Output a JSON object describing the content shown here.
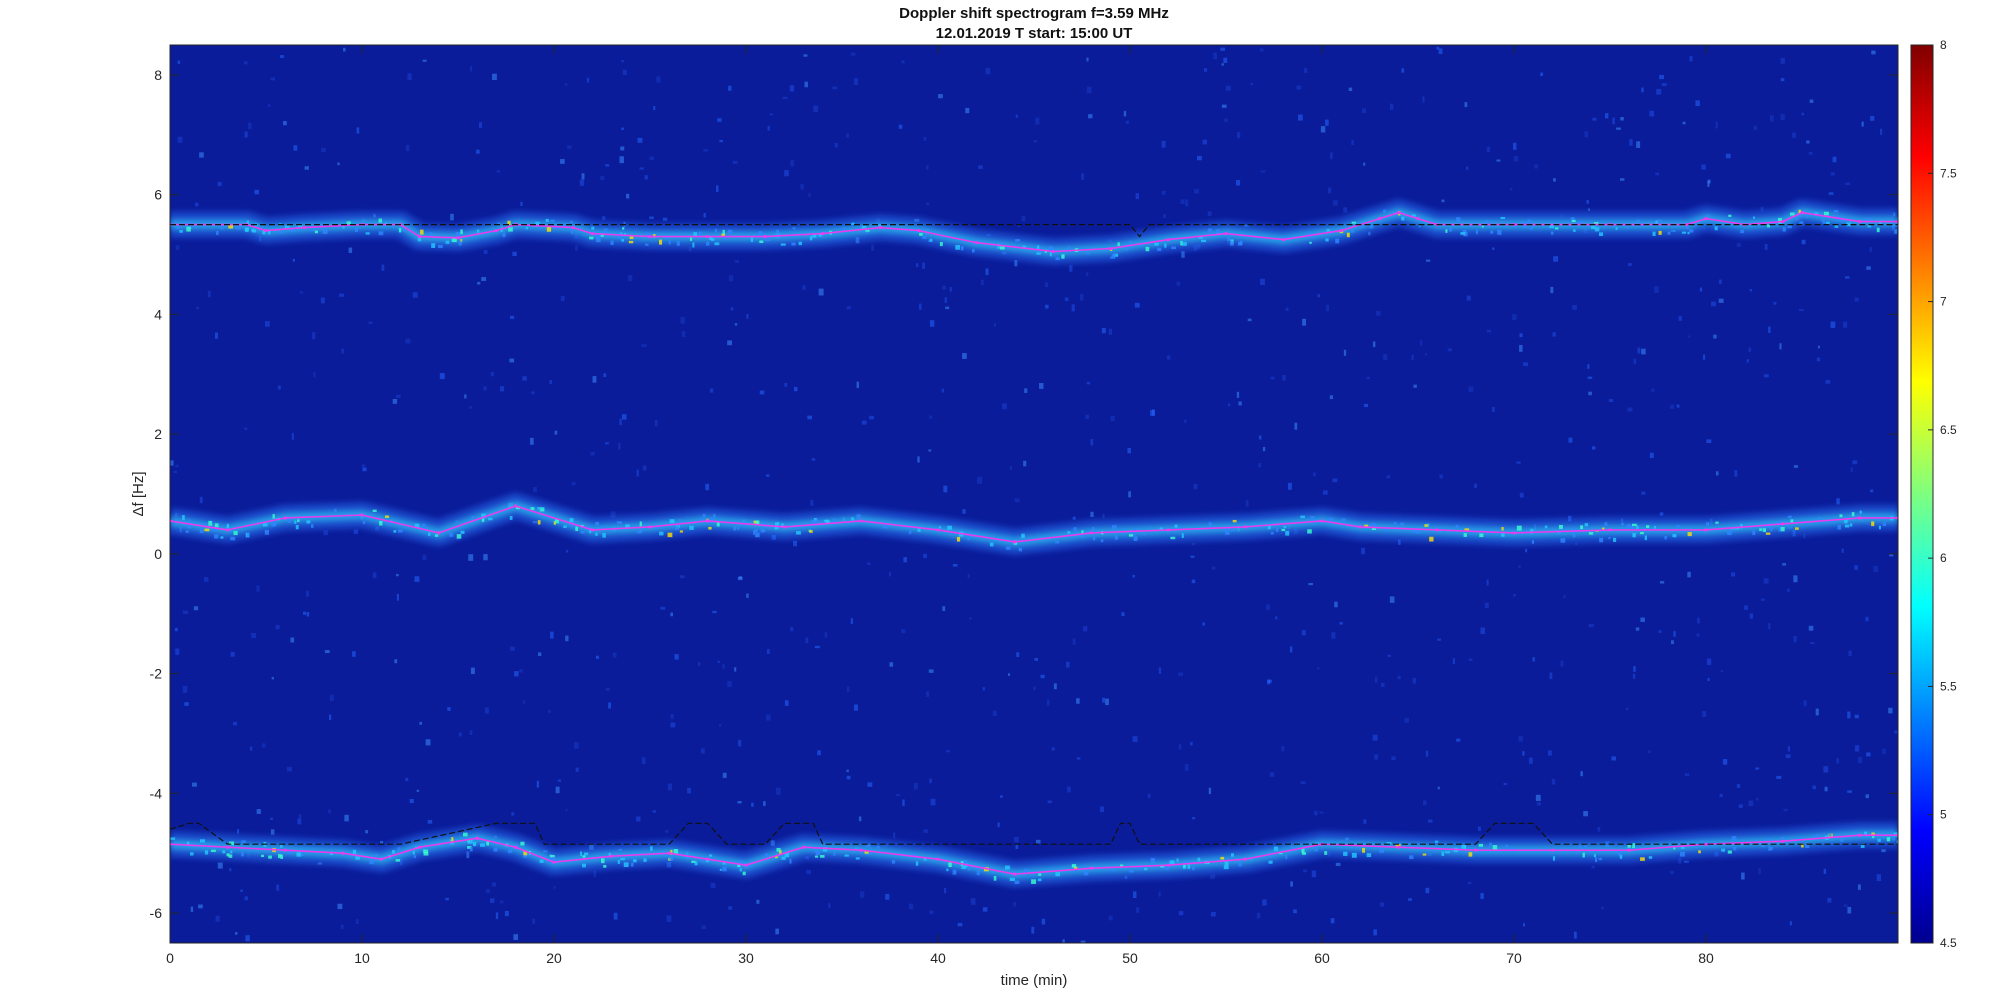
{
  "chart_data": {
    "type": "heatmap",
    "title": "Doppler shift spectrogram f=3.59 MHz",
    "subtitle": "12.01.2019   T start: 15:00 UT",
    "xlabel": "time (min)",
    "ylabel": "Δf [Hz]",
    "xlim": [
      0,
      90
    ],
    "ylim": [
      -6.5,
      8.5
    ],
    "xticks": [
      0,
      10,
      20,
      30,
      40,
      50,
      60,
      70,
      80
    ],
    "yticks": [
      -6,
      -4,
      -2,
      0,
      2,
      4,
      6,
      8
    ],
    "colorbar": {
      "colormap": "jet",
      "range": [
        4.5,
        8
      ],
      "ticks": [
        4.5,
        5,
        5.5,
        6,
        6.5,
        7,
        7.5,
        8
      ]
    },
    "background_color": "#0a1c9a",
    "series": [
      {
        "color": "#e83cf0",
        "x": [
          0,
          4,
          5,
          7,
          10,
          12,
          13,
          15,
          17,
          18,
          21,
          22,
          25,
          28,
          31,
          34,
          37,
          39,
          42,
          46,
          49,
          52,
          55,
          58,
          61,
          63,
          64,
          65,
          66,
          70,
          75,
          79,
          80,
          82,
          84,
          85,
          88,
          90
        ],
        "y": [
          5.5,
          5.5,
          5.4,
          5.45,
          5.5,
          5.5,
          5.3,
          5.28,
          5.4,
          5.5,
          5.45,
          5.35,
          5.3,
          5.3,
          5.3,
          5.35,
          5.45,
          5.4,
          5.2,
          5.05,
          5.1,
          5.25,
          5.35,
          5.25,
          5.4,
          5.6,
          5.7,
          5.6,
          5.5,
          5.5,
          5.5,
          5.5,
          5.6,
          5.5,
          5.55,
          5.7,
          5.55,
          5.55
        ]
      },
      {
        "color": "#e83cf0",
        "x": [
          0,
          3,
          6,
          10,
          14,
          18,
          22,
          25,
          28,
          32,
          36,
          40,
          44,
          48,
          52,
          56,
          60,
          62,
          66,
          70,
          75,
          80,
          84,
          88,
          90
        ],
        "y": [
          0.55,
          0.4,
          0.6,
          0.65,
          0.35,
          0.8,
          0.4,
          0.45,
          0.55,
          0.45,
          0.55,
          0.4,
          0.2,
          0.35,
          0.4,
          0.45,
          0.55,
          0.45,
          0.4,
          0.35,
          0.4,
          0.4,
          0.5,
          0.6,
          0.6
        ]
      },
      {
        "color": "#e83cf0",
        "x": [
          0,
          3,
          6,
          9,
          11,
          13,
          16,
          18,
          20,
          23,
          26,
          28,
          30,
          33,
          36,
          40,
          44,
          48,
          52,
          56,
          60,
          64,
          68,
          72,
          76,
          80,
          84,
          88,
          90
        ],
        "y": [
          -4.85,
          -4.9,
          -4.95,
          -5.0,
          -5.1,
          -4.9,
          -4.75,
          -4.9,
          -5.15,
          -5.05,
          -5.0,
          -5.1,
          -5.2,
          -4.9,
          -4.95,
          -5.1,
          -5.35,
          -5.25,
          -5.2,
          -5.1,
          -4.85,
          -4.9,
          -4.95,
          -4.95,
          -4.95,
          -4.85,
          -4.8,
          -4.7,
          -4.7
        ]
      },
      {
        "color": "#111111",
        "x": [
          0,
          5,
          5,
          12,
          12,
          15,
          22,
          28,
          35,
          45,
          50,
          50.5,
          51,
          53,
          60,
          70,
          80,
          90
        ],
        "y": [
          5.5,
          5.5,
          5.5,
          5.5,
          5.5,
          5.5,
          5.5,
          5.5,
          5.5,
          5.5,
          5.5,
          5.3,
          5.5,
          5.5,
          5.5,
          5.5,
          5.5,
          5.5
        ]
      },
      {
        "color": "#111111",
        "x": [
          0,
          1,
          1.5,
          3,
          4,
          12,
          17,
          18,
          19,
          19.5,
          20,
          26,
          27,
          28,
          29,
          31,
          32,
          33,
          33.5,
          34,
          49,
          49.5,
          50,
          50.5,
          51,
          68,
          69,
          70,
          71,
          72,
          90
        ],
        "y": [
          -4.6,
          -4.5,
          -4.5,
          -4.85,
          -4.85,
          -4.85,
          -4.5,
          -4.5,
          -4.5,
          -4.85,
          -4.85,
          -4.85,
          -4.5,
          -4.5,
          -4.85,
          -4.85,
          -4.5,
          -4.5,
          -4.5,
          -4.85,
          -4.85,
          -4.5,
          -4.5,
          -4.85,
          -4.85,
          -4.85,
          -4.5,
          -4.5,
          -4.5,
          -4.85,
          -4.85
        ]
      }
    ]
  }
}
